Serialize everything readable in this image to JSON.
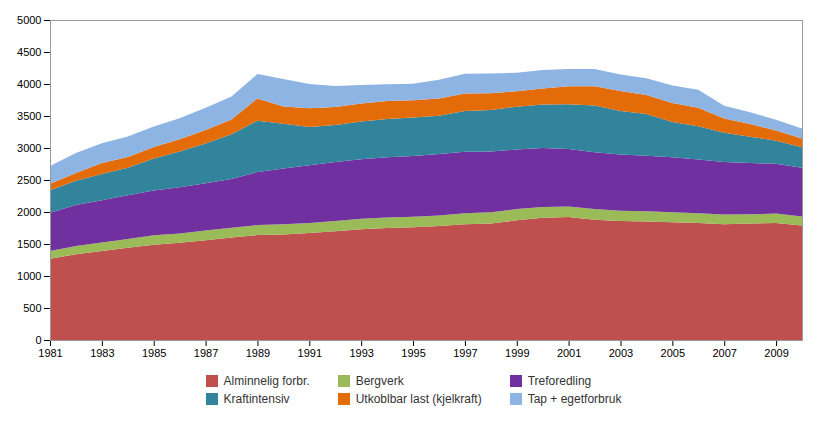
{
  "chart_data": {
    "type": "area",
    "stacked": true,
    "grid": false,
    "legend": "bottom",
    "x": [
      1981,
      1982,
      1983,
      1984,
      1985,
      1986,
      1987,
      1988,
      1989,
      1990,
      1991,
      1992,
      1993,
      1994,
      1995,
      1996,
      1997,
      1998,
      1999,
      2000,
      2001,
      2002,
      2003,
      2004,
      2005,
      2006,
      2007,
      2008,
      2009,
      2010
    ],
    "xlim": [
      1981,
      2010
    ],
    "xticks": [
      1981,
      1983,
      1985,
      1987,
      1989,
      1991,
      1993,
      1995,
      1997,
      1999,
      2001,
      2003,
      2005,
      2007,
      2009
    ],
    "ylim": [
      0,
      5000
    ],
    "yticks": [
      0,
      500,
      1000,
      1500,
      2000,
      2500,
      3000,
      3500,
      4000,
      4500,
      5000
    ],
    "series": [
      {
        "name": "Alminnelig forbr.",
        "color": "#C0504D",
        "values": [
          1270,
          1340,
          1390,
          1440,
          1490,
          1520,
          1560,
          1600,
          1640,
          1650,
          1670,
          1700,
          1730,
          1750,
          1760,
          1780,
          1810,
          1820,
          1870,
          1910,
          1920,
          1880,
          1860,
          1850,
          1840,
          1830,
          1810,
          1820,
          1830,
          1790
        ]
      },
      {
        "name": "Bergverk",
        "color": "#9BBB59",
        "values": [
          120,
          130,
          135,
          140,
          145,
          145,
          150,
          155,
          155,
          160,
          160,
          160,
          165,
          165,
          165,
          165,
          170,
          175,
          175,
          170,
          165,
          165,
          160,
          160,
          155,
          150,
          150,
          145,
          145,
          140
        ]
      },
      {
        "name": "Treforedling",
        "color": "#7030A0",
        "values": [
          600,
          640,
          660,
          680,
          700,
          720,
          740,
          760,
          830,
          870,
          900,
          920,
          930,
          940,
          950,
          960,
          960,
          950,
          930,
          920,
          900,
          890,
          880,
          870,
          860,
          840,
          820,
          800,
          780,
          760
        ]
      },
      {
        "name": "Kraftintensiv",
        "color": "#31849B",
        "values": [
          350,
          380,
          410,
          430,
          500,
          560,
          620,
          700,
          800,
          700,
          600,
          580,
          590,
          600,
          600,
          600,
          640,
          650,
          670,
          680,
          700,
          730,
          680,
          650,
          550,
          520,
          460,
          410,
          360,
          320
        ]
      },
      {
        "name": "Utkoblbar last (kjelkraft)",
        "color": "#E36C09",
        "values": [
          100,
          120,
          170,
          170,
          180,
          190,
          210,
          230,
          350,
          270,
          290,
          280,
          280,
          280,
          270,
          270,
          270,
          260,
          240,
          250,
          280,
          300,
          310,
          300,
          300,
          290,
          220,
          200,
          160,
          140
        ]
      },
      {
        "name": "Tap + egetforbruk",
        "color": "#8EB4E3",
        "values": [
          280,
          310,
          310,
          320,
          320,
          330,
          350,
          360,
          380,
          430,
          380,
          330,
          290,
          260,
          260,
          290,
          310,
          310,
          290,
          290,
          270,
          270,
          260,
          260,
          270,
          280,
          200,
          185,
          165,
          155
        ]
      }
    ]
  }
}
